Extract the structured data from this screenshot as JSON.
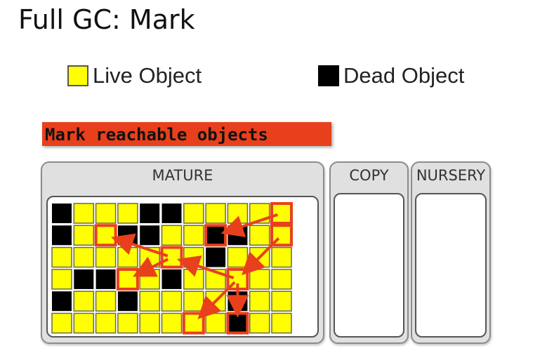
{
  "title": "Full GC: Mark",
  "legend": {
    "live_label": "Live Object",
    "dead_label": "Dead Object"
  },
  "banner": "Mark reachable objects",
  "regions": {
    "mature": "MATURE",
    "copy": "COPY",
    "nursery": "NURSERY"
  },
  "colors": {
    "live": "#ffff00",
    "dead": "#000000",
    "marked_border": "#e8401c",
    "arrow": "#e8401c"
  },
  "grid": {
    "rows": [
      "DLLLDDLLLLL",
      "DLLDDLLDDLL",
      "LLLLLLLDLLL",
      "LDDLLDLLLLL",
      "DLLDLLLLDLL",
      "LLLLLLLLDLL"
    ],
    "marked": [
      [
        0,
        10
      ],
      [
        1,
        2
      ],
      [
        1,
        7
      ],
      [
        1,
        10
      ],
      [
        2,
        5
      ],
      [
        3,
        3
      ],
      [
        3,
        8
      ],
      [
        5,
        6
      ],
      [
        5,
        8
      ]
    ],
    "references": [
      [
        [
          0,
          10
        ],
        [
          1,
          7
        ]
      ],
      [
        [
          1,
          10
        ],
        [
          3,
          8
        ]
      ],
      [
        [
          3,
          8
        ],
        [
          2,
          5
        ]
      ],
      [
        [
          2,
          5
        ],
        [
          1,
          2
        ]
      ],
      [
        [
          2,
          5
        ],
        [
          3,
          3
        ]
      ],
      [
        [
          3,
          8
        ],
        [
          5,
          6
        ]
      ],
      [
        [
          3,
          8
        ],
        [
          5,
          8
        ]
      ]
    ]
  }
}
